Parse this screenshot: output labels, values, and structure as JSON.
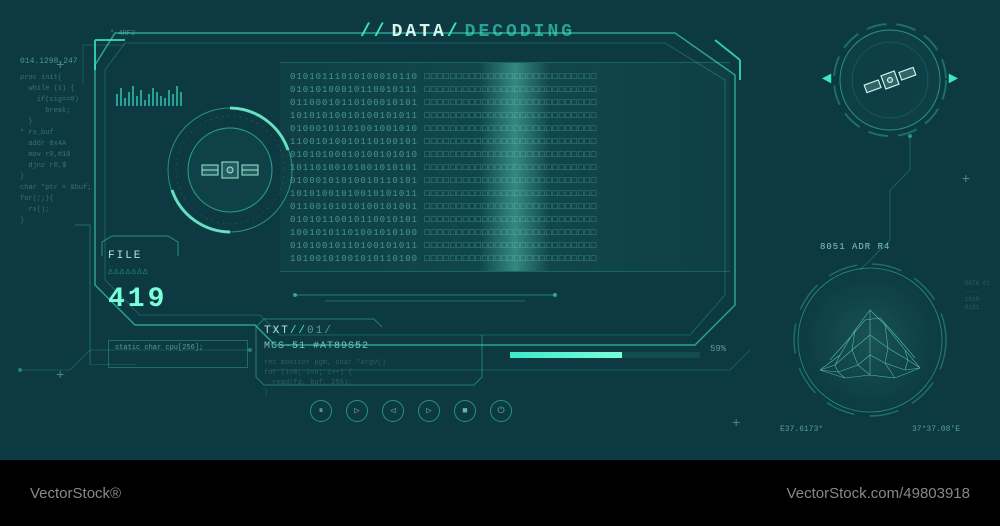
{
  "title": {
    "slash": "//",
    "main": "DATA",
    "sep": "/",
    "sub": "DECODING"
  },
  "binary": {
    "rows": [
      "01010111010100010110 □□□□□□□□□□□□□□□□□□□□□□□□□□□",
      "01010100010110010111 □□□□□□□□□□□□□□□□□□□□□□□□□□□",
      "01100010110100010101 □□□□□□□□□□□□□□□□□□□□□□□□□□□",
      "10101010010100101011 □□□□□□□□□□□□□□□□□□□□□□□□□□□",
      "01000101101001001010 □□□□□□□□□□□□□□□□□□□□□□□□□□□",
      "11001010010110100101 □□□□□□□□□□□□□□□□□□□□□□□□□□□",
      "01010100010100101010 □□□□□□□□□□□□□□□□□□□□□□□□□□□",
      "10110100101001010101 □□□□□□□□□□□□□□□□□□□□□□□□□□□",
      "01000101010010110101 □□□□□□□□□□□□□□□□□□□□□□□□□□□",
      "10101001010010101011 □□□□□□□□□□□□□□□□□□□□□□□□□□□",
      "01100101010100101001 □□□□□□□□□□□□□□□□□□□□□□□□□□□",
      "01010110010110010101 □□□□□□□□□□□□□□□□□□□□□□□□□□□",
      "10010101101001010100 □□□□□□□□□□□□□□□□□□□□□□□□□□□",
      "01010010110100101011 □□□□□□□□□□□□□□□□□□□□□□□□□□□",
      "10100101001010110100 □□□□□□□□□□□□□□□□□□□□□□□□□□□"
    ]
  },
  "file": {
    "label": "FILE",
    "triangles": "△△△△△△△",
    "number": "419"
  },
  "txt": {
    "label": "TXT",
    "slash": "//",
    "num": "01/",
    "sub": "MCS-51 #AT89S52",
    "body": "rec monitor pgm, char *argv[]\nfor (i=0; i<n; i++) {\n  read(fd, buf, 256);\n}"
  },
  "code_panel": "static char cpu[256];",
  "progress": {
    "percent": 59,
    "label": "59%"
  },
  "side": {
    "top_code": "* 4RF2",
    "ip": "014.1298.247",
    "lines": "proc init{\n  while (1) {\n    if(sig==0)\n      break;\n  }\n* rx_buf\n  addr 0x4A\n  mov r0,#10\n  djnz r0,$\n}\nchar *ptr = &buf;\nfor(;;){\n  rx();\n}"
  },
  "terrain": {
    "label": "8051 ADR R4",
    "coord_l": "E37.6173°",
    "coord_r": "37°37.08'E",
    "side": "DATA 01\n----\n1010\n0101"
  },
  "media": [
    "⏸",
    "▷",
    "◁",
    "▷",
    "■",
    "⏻"
  ],
  "footer": {
    "left": "VectorStock®",
    "right": "VectorStock.com/49803918"
  },
  "colors": {
    "bg": "#0d3a42",
    "accent": "#3de8c9",
    "bright": "#7affda",
    "text_dim": "#5a9e91",
    "text_mid": "#7fc8ba",
    "stroke": "#3de8c9"
  },
  "bars": [
    12,
    18,
    8,
    14,
    20,
    10,
    16,
    6,
    12,
    18,
    14,
    10,
    8,
    16,
    12,
    20,
    14
  ]
}
